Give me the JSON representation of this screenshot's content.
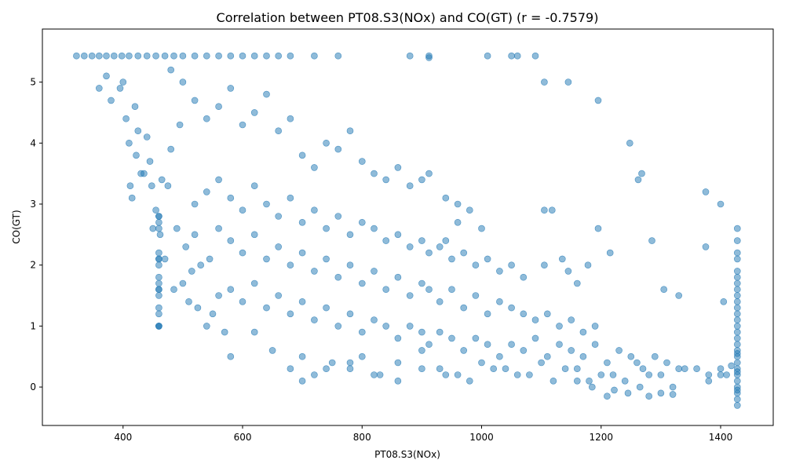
{
  "chart_data": {
    "type": "scatter",
    "title": "Correlation between PT08.S3(NOx) and CO(GT) (r = -0.7579)",
    "xlabel": "PT08.S3(NOx)",
    "ylabel": "CO(GT)",
    "xlim": [
      265,
      1488
    ],
    "ylim": [
      -0.63,
      5.87
    ],
    "xticks": [
      400,
      600,
      800,
      1000,
      1200,
      1400
    ],
    "yticks": [
      0,
      1,
      2,
      3,
      4,
      5
    ],
    "grid": false,
    "color": "#1f77b4",
    "correlation": -0.7579,
    "series": [
      {
        "x": [
          322,
          335,
          348,
          360,
          372,
          385,
          398,
          410,
          425,
          440,
          455,
          470,
          485,
          500,
          520,
          540,
          560,
          580,
          600,
          620,
          640,
          660,
          680,
          720,
          760,
          880,
          912,
          912,
          1010,
          1060,
          1090,
          360,
          372,
          380,
          395,
          400,
          405,
          410,
          412,
          415,
          420,
          422,
          425,
          430,
          435,
          440,
          445,
          448,
          450,
          455,
          460,
          460,
          460,
          460,
          462,
          465,
          470,
          475,
          480,
          485,
          490,
          495,
          500,
          505,
          510,
          515,
          520,
          525,
          530,
          540,
          545,
          550,
          560,
          570,
          580,
          480,
          500,
          520,
          540,
          560,
          580,
          600,
          620,
          640,
          660,
          680,
          700,
          720,
          740,
          760,
          780,
          800,
          820,
          840,
          860,
          880,
          900,
          912,
          940,
          960,
          980,
          520,
          540,
          560,
          580,
          600,
          620,
          640,
          660,
          680,
          700,
          720,
          740,
          760,
          780,
          800,
          820,
          840,
          860,
          880,
          900,
          912,
          930,
          950,
          970,
          990,
          1010,
          1030,
          1050,
          1070,
          560,
          580,
          600,
          620,
          640,
          660,
          680,
          700,
          720,
          740,
          760,
          780,
          800,
          820,
          840,
          860,
          880,
          900,
          912,
          930,
          950,
          970,
          990,
          1010,
          1030,
          1050,
          1070,
          1090,
          1110,
          1130,
          1150,
          1170,
          1190,
          580,
          600,
          620,
          640,
          660,
          680,
          700,
          720,
          740,
          760,
          780,
          800,
          820,
          840,
          860,
          880,
          900,
          912,
          930,
          950,
          970,
          990,
          1010,
          1030,
          1050,
          1070,
          1090,
          1110,
          1130,
          1150,
          1170,
          1190,
          1210,
          1230,
          1250,
          1270,
          1290,
          1310,
          1330,
          620,
          650,
          680,
          700,
          720,
          750,
          780,
          800,
          830,
          860,
          900,
          930,
          960,
          1000,
          1040,
          1080,
          1120,
          1160,
          1200,
          1240,
          1280,
          1320,
          1360,
          1400,
          700,
          740,
          780,
          820,
          860,
          900,
          940,
          980,
          1020,
          1060,
          1100,
          1140,
          1180,
          1220,
          1260,
          1300,
          1340,
          1380,
          1410,
          1428,
          1428,
          1428,
          1428,
          1428,
          1428,
          1428,
          1428,
          1428,
          1428,
          1428,
          1428,
          1428,
          1428,
          1428,
          1428,
          1428,
          1428,
          1428,
          1428,
          1428,
          1428,
          1428,
          1428,
          1428,
          1428,
          1428,
          1428,
          1428,
          1428,
          1210,
          1222,
          1245,
          1265,
          1280,
          1300,
          1320,
          1185,
          1160,
          1380,
          1400,
          1418,
          1050,
          1105,
          1145,
          1195,
          1248,
          1268,
          1262,
          1375,
          1400,
          1105,
          1000,
          940,
          960,
          1195,
          1215,
          1285,
          1375,
          1405,
          1105,
          1118,
          1135,
          1145,
          1160,
          1178,
          1305,
          1330,
          460,
          460,
          460,
          460,
          460,
          460,
          460,
          460,
          460,
          460,
          460,
          460,
          460,
          460
        ],
        "y": [
          5.43,
          5.43,
          5.43,
          5.43,
          5.43,
          5.43,
          5.43,
          5.43,
          5.43,
          5.43,
          5.43,
          5.43,
          5.43,
          5.43,
          5.43,
          5.43,
          5.43,
          5.43,
          5.43,
          5.43,
          5.43,
          5.43,
          5.43,
          5.43,
          5.43,
          5.43,
          5.43,
          5.4,
          5.43,
          5.43,
          5.43,
          4.9,
          5.1,
          4.7,
          4.9,
          5.0,
          4.4,
          4.0,
          3.3,
          3.1,
          4.6,
          3.8,
          4.2,
          3.5,
          3.5,
          4.1,
          3.7,
          3.3,
          2.6,
          2.9,
          2.8,
          2.1,
          1.6,
          1.0,
          2.5,
          3.4,
          2.1,
          3.3,
          3.9,
          1.6,
          2.6,
          4.3,
          1.7,
          2.3,
          1.4,
          1.9,
          2.5,
          1.3,
          2.0,
          1.0,
          2.1,
          1.2,
          1.5,
          0.9,
          0.5,
          5.2,
          5.0,
          4.7,
          4.4,
          4.6,
          4.9,
          4.3,
          4.5,
          4.8,
          4.2,
          4.4,
          3.8,
          3.6,
          4.0,
          3.9,
          4.2,
          3.7,
          3.5,
          3.4,
          3.6,
          3.3,
          3.4,
          3.5,
          3.1,
          3.0,
          2.9,
          3.0,
          3.2,
          3.4,
          3.1,
          2.9,
          3.3,
          3.0,
          2.8,
          3.1,
          2.7,
          2.9,
          2.6,
          2.8,
          2.5,
          2.7,
          2.6,
          2.4,
          2.5,
          2.3,
          2.4,
          2.2,
          2.3,
          2.1,
          2.2,
          2.0,
          2.1,
          1.9,
          2.0,
          1.8,
          2.6,
          2.4,
          2.2,
          2.5,
          2.1,
          2.3,
          2.0,
          2.2,
          1.9,
          2.1,
          1.8,
          2.0,
          1.7,
          1.9,
          1.6,
          1.8,
          1.5,
          1.7,
          1.6,
          1.4,
          1.6,
          1.3,
          1.5,
          1.2,
          1.4,
          1.3,
          1.2,
          1.1,
          1.2,
          1.0,
          1.1,
          0.9,
          1.0,
          1.6,
          1.4,
          1.7,
          1.3,
          1.5,
          1.2,
          1.4,
          1.1,
          1.3,
          1.0,
          1.2,
          0.9,
          1.1,
          1.0,
          0.8,
          1.0,
          0.9,
          0.7,
          0.9,
          0.8,
          0.6,
          0.8,
          0.7,
          0.5,
          0.7,
          0.6,
          0.8,
          0.5,
          0.7,
          0.6,
          0.5,
          0.7,
          0.4,
          0.6,
          0.5,
          0.3,
          0.5,
          0.4,
          0.3,
          0.9,
          0.6,
          0.3,
          0.5,
          0.2,
          0.4,
          0.3,
          0.5,
          0.2,
          0.4,
          0.6,
          0.3,
          0.2,
          0.4,
          0.3,
          0.2,
          0.1,
          0.3,
          0.2,
          0.1,
          0.2,
          0.0,
          0.3,
          0.2,
          0.1,
          0.3,
          0.4,
          0.2,
          0.1,
          0.3,
          0.2,
          0.1,
          0.3,
          0.2,
          0.4,
          0.3,
          0.1,
          0.2,
          0.4,
          0.2,
          0.3,
          0.1,
          0.2,
          2.6,
          2.4,
          2.2,
          2.1,
          1.9,
          1.8,
          1.7,
          1.6,
          1.5,
          1.4,
          1.3,
          1.2,
          1.1,
          1.0,
          0.9,
          0.8,
          0.7,
          0.6,
          0.5,
          0.4,
          0.3,
          0.2,
          0.1,
          0.0,
          -0.1,
          -0.2,
          -0.3,
          -0.05,
          0.25,
          0.55,
          -0.15,
          -0.05,
          -0.1,
          0.0,
          -0.15,
          -0.1,
          -0.12,
          0.0,
          0.1,
          0.2,
          0.3,
          0.35,
          5.43,
          5.0,
          5.0,
          4.7,
          4.0,
          3.5,
          3.4,
          3.2,
          3.0,
          2.9,
          2.6,
          2.4,
          2.7,
          2.6,
          2.2,
          2.4,
          2.3,
          1.4,
          2.0,
          2.9,
          2.1,
          1.9,
          1.7,
          2.0,
          1.6,
          1.5,
          2.8,
          2.7,
          2.6,
          2.2,
          2.1,
          2.0,
          1.8,
          1.7,
          1.6,
          1.5,
          1.3,
          1.2,
          1.0,
          1.0
        ]
      }
    ]
  }
}
